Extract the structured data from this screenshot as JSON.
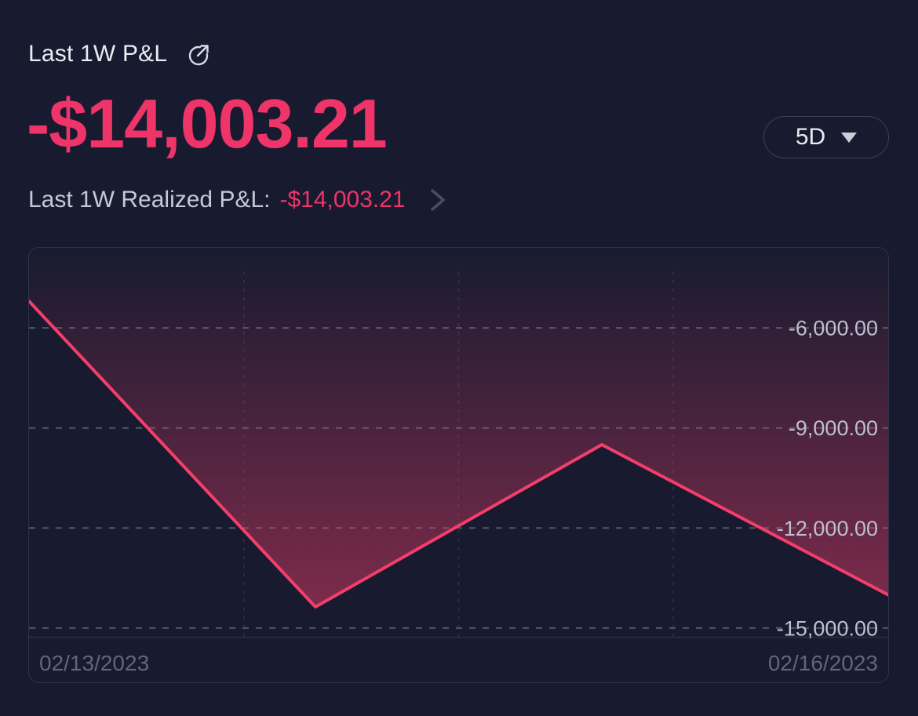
{
  "widget": {
    "title": "Last 1W P&L",
    "pnl_value": "-$14,003.21",
    "range_selector": {
      "selected": "5D"
    },
    "realized": {
      "label": "Last 1W Realized P&L:",
      "value": "-$14,003.21"
    }
  },
  "icons": {
    "external_link": "arrow-up-right-circle",
    "caret": "triangle-down",
    "chevron": "chevron-right"
  },
  "colors": {
    "background": "#181b2f",
    "value_pink": "#ee3468",
    "line_pink": "#f33e6b",
    "fill_pink": "#f43e6c",
    "card_border": "#2e334b",
    "grid_major": "#51566b",
    "grid_minor": "#2c3149",
    "axis_line": "#2c3147",
    "ytick_label": "#bcc0d0",
    "date_label": "#5f6680",
    "title_text": "#e9ecf4",
    "secondary_text": "#c5c8d6"
  },
  "chart_data": {
    "type": "area",
    "x": [
      "02/13/2023",
      "02/14/2023",
      "02/15/2023",
      "02/16/2023"
    ],
    "values": [
      -5200,
      -14365,
      -9500,
      -14003.21
    ],
    "x_labels_visible": [
      "02/13/2023",
      "02/16/2023"
    ],
    "yticks": [
      -6000,
      -9000,
      -12000,
      -15000
    ],
    "ytick_labels": [
      "-6,000.00",
      "-9,000.00",
      "-12,000.00",
      "-15,000.00"
    ],
    "ylim": [
      -15260,
      -3600
    ],
    "grid": "dashed",
    "legend": "none",
    "fill": "vertical-gradient-above-line",
    "title": "Last 1W P&L",
    "xlabel": "",
    "ylabel": ""
  }
}
